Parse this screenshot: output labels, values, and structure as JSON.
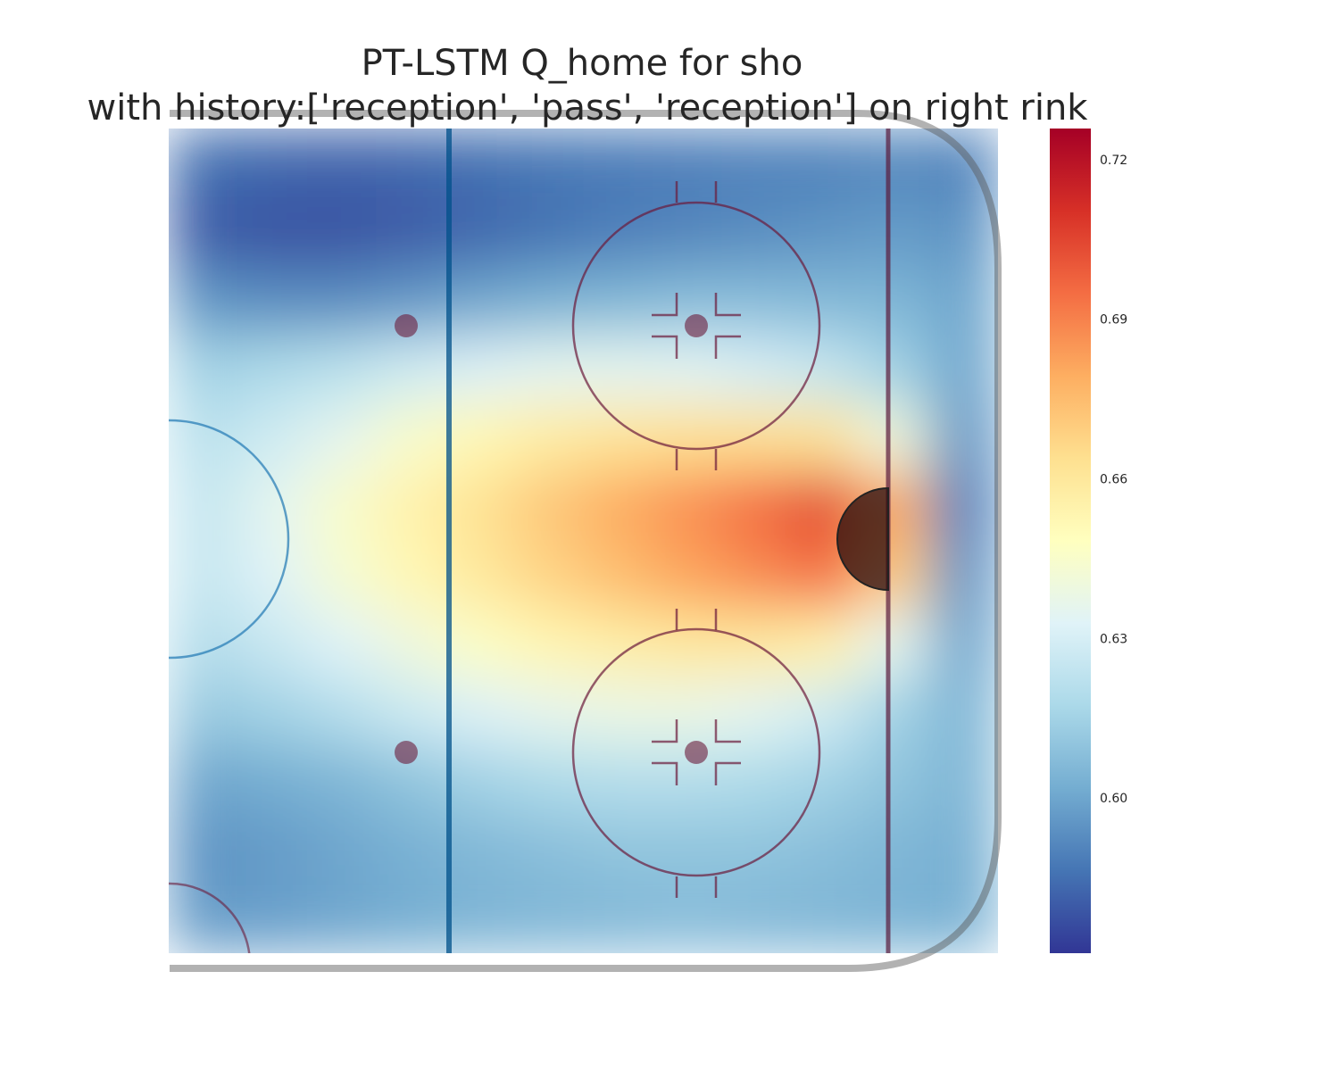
{
  "chart_data": {
    "type": "heatmap",
    "title": "PT-LSTM Q_home for sho",
    "subtitle": "with history:['reception', 'pass', 'reception'] on right rink",
    "colormap": [
      "#313695",
      "#4575b4",
      "#74add1",
      "#abd9e9",
      "#e0f3f8",
      "#ffffbf",
      "#fee090",
      "#fdae61",
      "#f46d43",
      "#d73027",
      "#a50026"
    ],
    "clim": [
      0.571,
      0.726
    ],
    "cticks": [
      {
        "value": 0.6,
        "label": "0.60"
      },
      0.63,
      0.66,
      0.69,
      0.72
    ],
    "values": [
      [
        0.585,
        0.583,
        0.582,
        0.583,
        0.585,
        0.587,
        0.588,
        0.589,
        0.59,
        0.59,
        0.592,
        0.59
      ],
      [
        0.58,
        0.578,
        0.578,
        0.58,
        0.583,
        0.586,
        0.589,
        0.591,
        0.593,
        0.595,
        0.597,
        0.595
      ],
      [
        0.595,
        0.593,
        0.593,
        0.596,
        0.6,
        0.603,
        0.605,
        0.607,
        0.607,
        0.606,
        0.605,
        0.6
      ],
      [
        0.615,
        0.618,
        0.622,
        0.628,
        0.632,
        0.635,
        0.635,
        0.634,
        0.63,
        0.625,
        0.615,
        0.6
      ],
      [
        0.622,
        0.628,
        0.636,
        0.645,
        0.652,
        0.658,
        0.662,
        0.664,
        0.664,
        0.662,
        0.64,
        0.595
      ],
      [
        0.625,
        0.635,
        0.645,
        0.655,
        0.663,
        0.672,
        0.68,
        0.687,
        0.695,
        0.705,
        0.68,
        0.59
      ],
      [
        0.625,
        0.633,
        0.643,
        0.652,
        0.66,
        0.668,
        0.675,
        0.682,
        0.688,
        0.695,
        0.67,
        0.595
      ],
      [
        0.62,
        0.626,
        0.633,
        0.64,
        0.647,
        0.653,
        0.657,
        0.66,
        0.66,
        0.655,
        0.635,
        0.6
      ],
      [
        0.612,
        0.615,
        0.62,
        0.627,
        0.632,
        0.636,
        0.638,
        0.638,
        0.635,
        0.628,
        0.615,
        0.605
      ],
      [
        0.6,
        0.602,
        0.605,
        0.61,
        0.615,
        0.618,
        0.62,
        0.62,
        0.618,
        0.615,
        0.61,
        0.605
      ],
      [
        0.595,
        0.597,
        0.6,
        0.603,
        0.606,
        0.608,
        0.61,
        0.61,
        0.61,
        0.608,
        0.605,
        0.603
      ],
      [
        0.597,
        0.598,
        0.6,
        0.602,
        0.604,
        0.605,
        0.606,
        0.607,
        0.606,
        0.605,
        0.604,
        0.603
      ]
    ]
  }
}
